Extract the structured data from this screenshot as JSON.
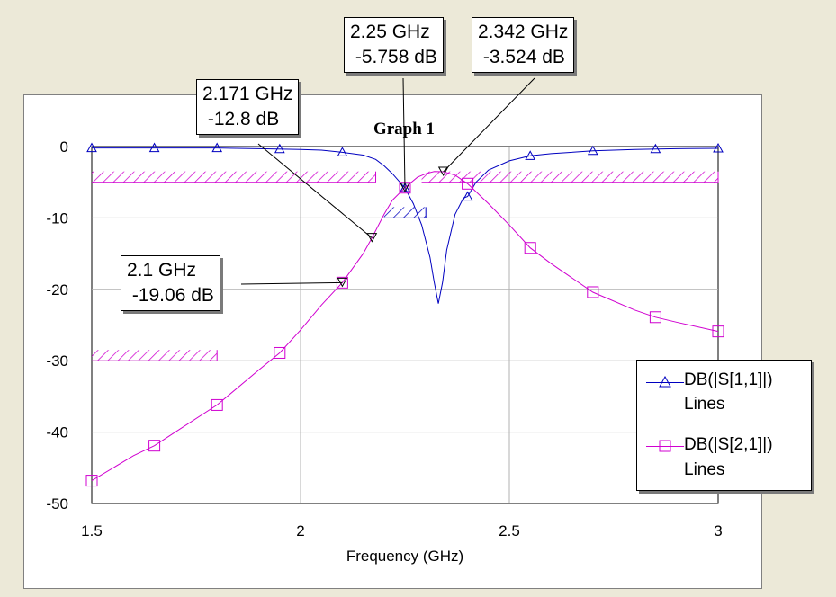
{
  "chart_data": {
    "type": "line",
    "title": "Graph 1",
    "xlabel": "Frequency (GHz)",
    "ylabel": "",
    "xlim": [
      1.5,
      3
    ],
    "ylim": [
      -50,
      0
    ],
    "x_ticks": [
      "1.5",
      "2",
      "2.5",
      "3"
    ],
    "y_ticks": [
      "0",
      "-10",
      "-20",
      "-30",
      "-40",
      "-50"
    ],
    "grid": true,
    "legend_position": "bottom-right",
    "series": [
      {
        "name": "DB(|S[1,1]|)",
        "subtitle": "Lines",
        "color": "#0000c0",
        "marker": "triangle",
        "points": [
          [
            1.5,
            -0.2
          ],
          [
            1.6,
            -0.2
          ],
          [
            1.7,
            -0.2
          ],
          [
            1.8,
            -0.2
          ],
          [
            1.9,
            -0.3
          ],
          [
            2.0,
            -0.4
          ],
          [
            2.05,
            -0.5
          ],
          [
            2.1,
            -0.8
          ],
          [
            2.15,
            -1.2
          ],
          [
            2.18,
            -1.8
          ],
          [
            2.2,
            -2.7
          ],
          [
            2.22,
            -3.8
          ],
          [
            2.25,
            -5.8
          ],
          [
            2.27,
            -8.0
          ],
          [
            2.29,
            -11.0
          ],
          [
            2.31,
            -15.5
          ],
          [
            2.32,
            -19.0
          ],
          [
            2.33,
            -22.0
          ],
          [
            2.34,
            -19.0
          ],
          [
            2.35,
            -14.5
          ],
          [
            2.37,
            -9.5
          ],
          [
            2.39,
            -7.2
          ],
          [
            2.4,
            -7.0
          ],
          [
            2.42,
            -5.0
          ],
          [
            2.45,
            -3.3
          ],
          [
            2.5,
            -2.0
          ],
          [
            2.55,
            -1.3
          ],
          [
            2.6,
            -1.0
          ],
          [
            2.7,
            -0.6
          ],
          [
            2.8,
            -0.4
          ],
          [
            2.9,
            -0.3
          ],
          [
            3.0,
            -0.25
          ]
        ],
        "marker_x": [
          1.5,
          1.65,
          1.8,
          1.95,
          2.1,
          2.25,
          2.4,
          2.55,
          2.7,
          2.85,
          3.0
        ]
      },
      {
        "name": "DB(|S[2,1]|)",
        "subtitle": "Lines",
        "color": "#d000d0",
        "marker": "square",
        "points": [
          [
            1.5,
            -46.8
          ],
          [
            1.6,
            -43.3
          ],
          [
            1.65,
            -41.9
          ],
          [
            1.7,
            -40.0
          ],
          [
            1.8,
            -36.2
          ],
          [
            1.9,
            -31.3
          ],
          [
            1.95,
            -28.9
          ],
          [
            2.0,
            -25.7
          ],
          [
            2.05,
            -22.2
          ],
          [
            2.1,
            -19.06
          ],
          [
            2.15,
            -15.0
          ],
          [
            2.171,
            -12.8
          ],
          [
            2.2,
            -9.5
          ],
          [
            2.22,
            -7.5
          ],
          [
            2.25,
            -5.758
          ],
          [
            2.28,
            -4.3
          ],
          [
            2.3,
            -3.8
          ],
          [
            2.32,
            -3.5
          ],
          [
            2.342,
            -3.524
          ],
          [
            2.37,
            -4.0
          ],
          [
            2.4,
            -5.2
          ],
          [
            2.45,
            -8.0
          ],
          [
            2.5,
            -11.0
          ],
          [
            2.55,
            -14.2
          ],
          [
            2.6,
            -16.4
          ],
          [
            2.7,
            -20.4
          ],
          [
            2.8,
            -22.9
          ],
          [
            2.85,
            -23.9
          ],
          [
            2.9,
            -24.6
          ],
          [
            3.0,
            -25.9
          ]
        ],
        "marker_x": [
          1.5,
          1.65,
          1.8,
          1.95,
          2.1,
          2.25,
          2.4,
          2.55,
          2.7,
          2.85,
          3.0
        ]
      }
    ],
    "goals": [
      {
        "x": [
          1.5,
          1.8
        ],
        "y": -30,
        "color": "#d000d0"
      },
      {
        "x": [
          1.5,
          2.18
        ],
        "y": -5,
        "color": "#d000d0"
      },
      {
        "x": [
          2.29,
          3.0
        ],
        "y": -5,
        "color": "#d000d0"
      },
      {
        "x": [
          2.2,
          2.3
        ],
        "y": -10,
        "color": "#0000c0"
      }
    ],
    "markers": [
      {
        "freq": "2.1 GHz",
        "value": "-19.06 dB",
        "x": 2.1,
        "y": -19.06
      },
      {
        "freq": "2.171 GHz",
        "value": "-12.8 dB",
        "x": 2.171,
        "y": -12.8
      },
      {
        "freq": "2.25 GHz",
        "value": "-5.758 dB",
        "x": 2.25,
        "y": -5.758
      },
      {
        "freq": "2.342 GHz",
        "value": "-3.524 dB",
        "x": 2.342,
        "y": -3.524
      }
    ]
  }
}
